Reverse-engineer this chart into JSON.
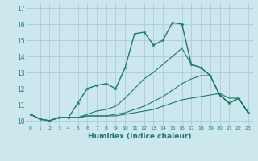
{
  "xlabel": "Humidex (Indice chaleur)",
  "x": [
    0,
    1,
    2,
    3,
    4,
    5,
    6,
    7,
    8,
    9,
    10,
    11,
    12,
    13,
    14,
    15,
    16,
    17,
    18,
    19,
    20,
    21,
    22,
    23
  ],
  "lines": [
    {
      "y": [
        10.4,
        10.1,
        10.0,
        10.2,
        10.2,
        11.1,
        12.0,
        12.2,
        12.3,
        12.0,
        13.3,
        15.4,
        15.5,
        14.7,
        15.0,
        16.1,
        16.0,
        13.5,
        13.3,
        12.8,
        11.6,
        11.1,
        11.4,
        10.5
      ],
      "marker": true,
      "lw": 1.0
    },
    {
      "y": [
        10.4,
        10.1,
        10.0,
        10.2,
        10.2,
        10.2,
        10.3,
        10.3,
        10.3,
        10.3,
        10.4,
        10.5,
        10.6,
        10.7,
        10.9,
        11.1,
        11.3,
        11.4,
        11.5,
        11.6,
        11.7,
        11.4,
        11.4,
        10.5
      ],
      "marker": false,
      "lw": 0.8
    },
    {
      "y": [
        10.4,
        10.1,
        10.0,
        10.2,
        10.2,
        10.2,
        10.3,
        10.3,
        10.3,
        10.4,
        10.5,
        10.7,
        10.9,
        11.2,
        11.5,
        11.9,
        12.3,
        12.6,
        12.8,
        12.8,
        11.6,
        11.1,
        11.4,
        10.5
      ],
      "marker": false,
      "lw": 0.8
    },
    {
      "y": [
        10.4,
        10.1,
        10.0,
        10.2,
        10.2,
        10.2,
        10.4,
        10.6,
        10.7,
        10.9,
        11.4,
        12.0,
        12.6,
        13.0,
        13.5,
        14.0,
        14.5,
        13.5,
        13.3,
        12.8,
        11.6,
        11.1,
        11.4,
        10.5
      ],
      "marker": false,
      "lw": 0.8
    }
  ],
  "line_color": "#1a7a6e",
  "bg_color": "#cce8ec",
  "grid_color": "#aacdd4",
  "ylim": [
    9.7,
    17.3
  ],
  "xlim": [
    -0.5,
    23.5
  ],
  "yticks": [
    10,
    11,
    12,
    13,
    14,
    15,
    16,
    17
  ],
  "xticks": [
    0,
    1,
    2,
    3,
    4,
    5,
    6,
    7,
    8,
    9,
    10,
    11,
    12,
    13,
    14,
    15,
    16,
    17,
    18,
    19,
    20,
    21,
    22,
    23
  ]
}
